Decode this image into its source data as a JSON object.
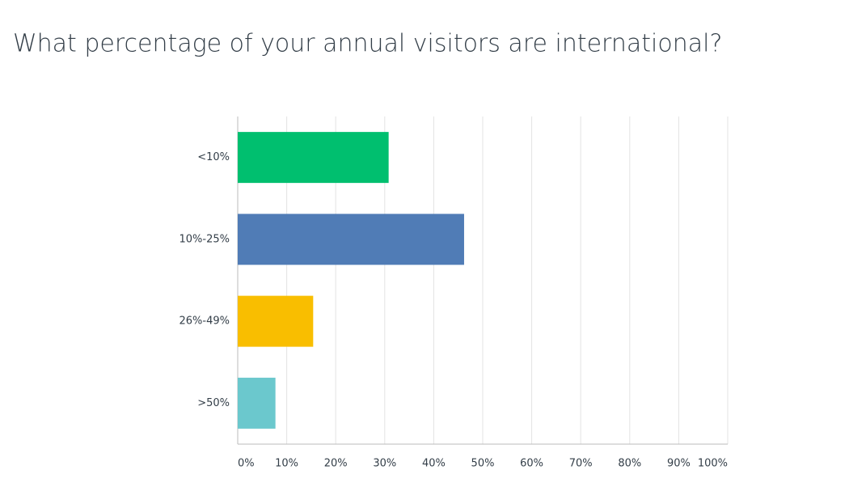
{
  "chart_data": {
    "type": "hbar",
    "title": "What percentage of your annual visitors are international?",
    "categories": [
      "<10%",
      "10%-25%",
      "26%-49%",
      ">50%"
    ],
    "values": [
      30.8,
      46.2,
      15.4,
      7.7
    ],
    "colors": [
      "#00bf6f",
      "#507cb6",
      "#f9be00",
      "#6bc8cd"
    ],
    "xlim": [
      0,
      100
    ],
    "xticks": [
      {
        "value": 0,
        "label": "0%"
      },
      {
        "value": 10,
        "label": "10%"
      },
      {
        "value": 20,
        "label": "20%"
      },
      {
        "value": 30,
        "label": "30%"
      },
      {
        "value": 40,
        "label": "40%"
      },
      {
        "value": 50,
        "label": "50%"
      },
      {
        "value": 60,
        "label": "60%"
      },
      {
        "value": 70,
        "label": "70%"
      },
      {
        "value": 80,
        "label": "80%"
      },
      {
        "value": 90,
        "label": "90%"
      },
      {
        "value": 100,
        "label": "100%"
      }
    ],
    "grid": true
  }
}
